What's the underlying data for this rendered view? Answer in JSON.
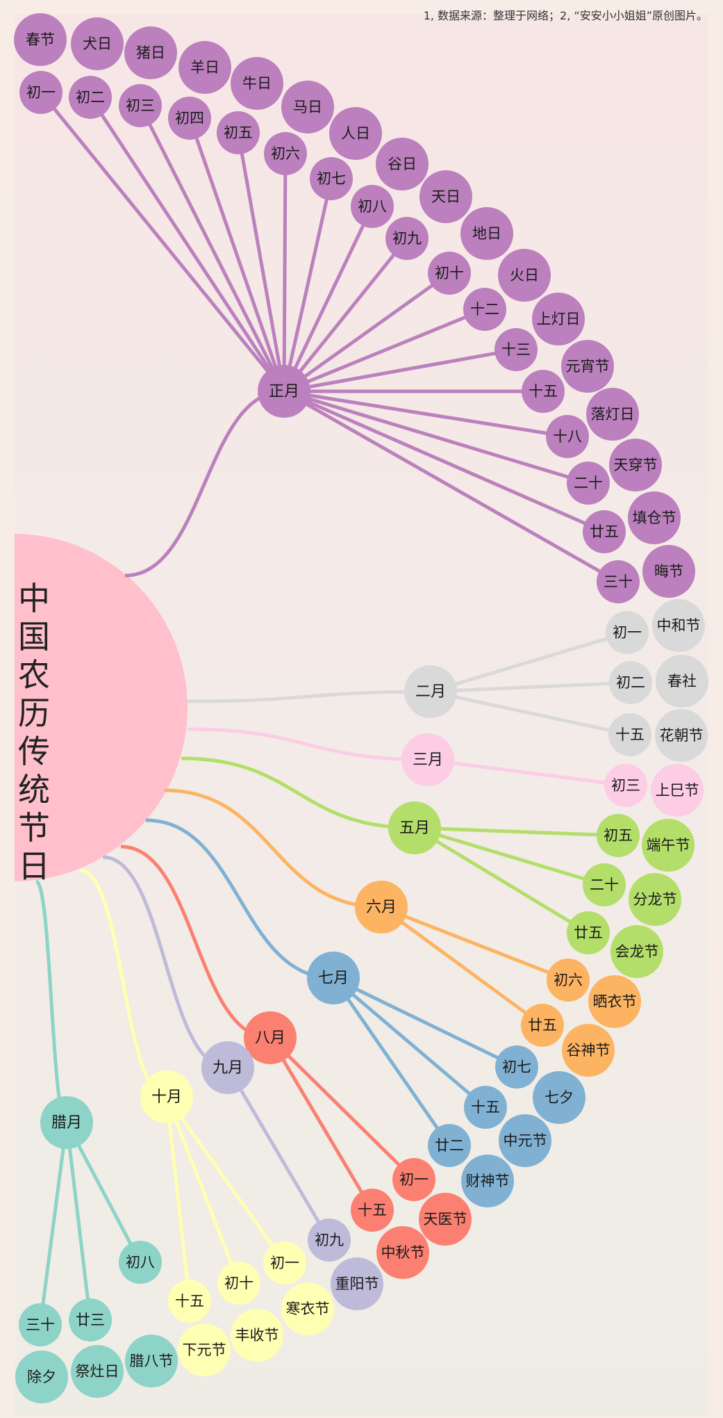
{
  "source_note": "1, 数据来源：整理于网络；2, “安安小小姐姐”原创图片。",
  "root": {
    "label": "中国农历传统节日",
    "color": "#ffc0cb"
  },
  "months": [
    {
      "label": "正月",
      "color": "#bb80bd",
      "days": [
        {
          "day": "初一",
          "festival": "春节"
        },
        {
          "day": "初二",
          "festival": "犬日"
        },
        {
          "day": "初三",
          "festival": "猪日"
        },
        {
          "day": "初四",
          "festival": "羊日"
        },
        {
          "day": "初五",
          "festival": "牛日"
        },
        {
          "day": "初六",
          "festival": "马日"
        },
        {
          "day": "初七",
          "festival": "人日"
        },
        {
          "day": "初八",
          "festival": "谷日"
        },
        {
          "day": "初九",
          "festival": "天日"
        },
        {
          "day": "初十",
          "festival": "地日"
        },
        {
          "day": "十二",
          "festival": "火日"
        },
        {
          "day": "十三",
          "festival": "上灯日"
        },
        {
          "day": "十五",
          "festival": "元宵节"
        },
        {
          "day": "十八",
          "festival": "落灯日"
        },
        {
          "day": "二十",
          "festival": "天穿节"
        },
        {
          "day": "廿五",
          "festival": "填仓节"
        },
        {
          "day": "三十",
          "festival": "晦节"
        }
      ]
    },
    {
      "label": "二月",
      "color": "#d9d9d9",
      "days": [
        {
          "day": "初一",
          "festival": "中和节"
        },
        {
          "day": "初二",
          "festival": "春社"
        },
        {
          "day": "十五",
          "festival": "花朝节"
        }
      ]
    },
    {
      "label": "三月",
      "color": "#fccde5",
      "days": [
        {
          "day": "初三",
          "festival": "上巳节"
        }
      ]
    },
    {
      "label": "五月",
      "color": "#b3de69",
      "days": [
        {
          "day": "初五",
          "festival": "端午节"
        },
        {
          "day": "二十",
          "festival": "分龙节"
        },
        {
          "day": "廿五",
          "festival": "会龙节"
        }
      ]
    },
    {
      "label": "六月",
      "color": "#fdb462",
      "days": [
        {
          "day": "初六",
          "festival": "晒衣节"
        },
        {
          "day": "廿五",
          "festival": "谷神节"
        }
      ]
    },
    {
      "label": "七月",
      "color": "#80b1d3",
      "days": [
        {
          "day": "初七",
          "festival": "七夕"
        },
        {
          "day": "十五",
          "festival": "中元节"
        },
        {
          "day": "廿二",
          "festival": "财神节"
        }
      ]
    },
    {
      "label": "八月",
      "color": "#fb8072",
      "days": [
        {
          "day": "初一",
          "festival": "天医节"
        },
        {
          "day": "十五",
          "festival": "中秋节"
        }
      ]
    },
    {
      "label": "九月",
      "color": "#bebada",
      "days": [
        {
          "day": "初九",
          "festival": "重阳节"
        }
      ]
    },
    {
      "label": "十月",
      "color": "#ffffb3",
      "days": [
        {
          "day": "初一",
          "festival": "寒衣节"
        },
        {
          "day": "初十",
          "festival": "丰收节"
        },
        {
          "day": "十五",
          "festival": "下元节"
        }
      ]
    },
    {
      "label": "腊月",
      "color": "#8dd3c7",
      "days": [
        {
          "day": "初八",
          "festival": "腊八节"
        },
        {
          "day": "廿三",
          "festival": "祭灶日"
        },
        {
          "day": "三十",
          "festival": "除夕"
        }
      ]
    }
  ]
}
